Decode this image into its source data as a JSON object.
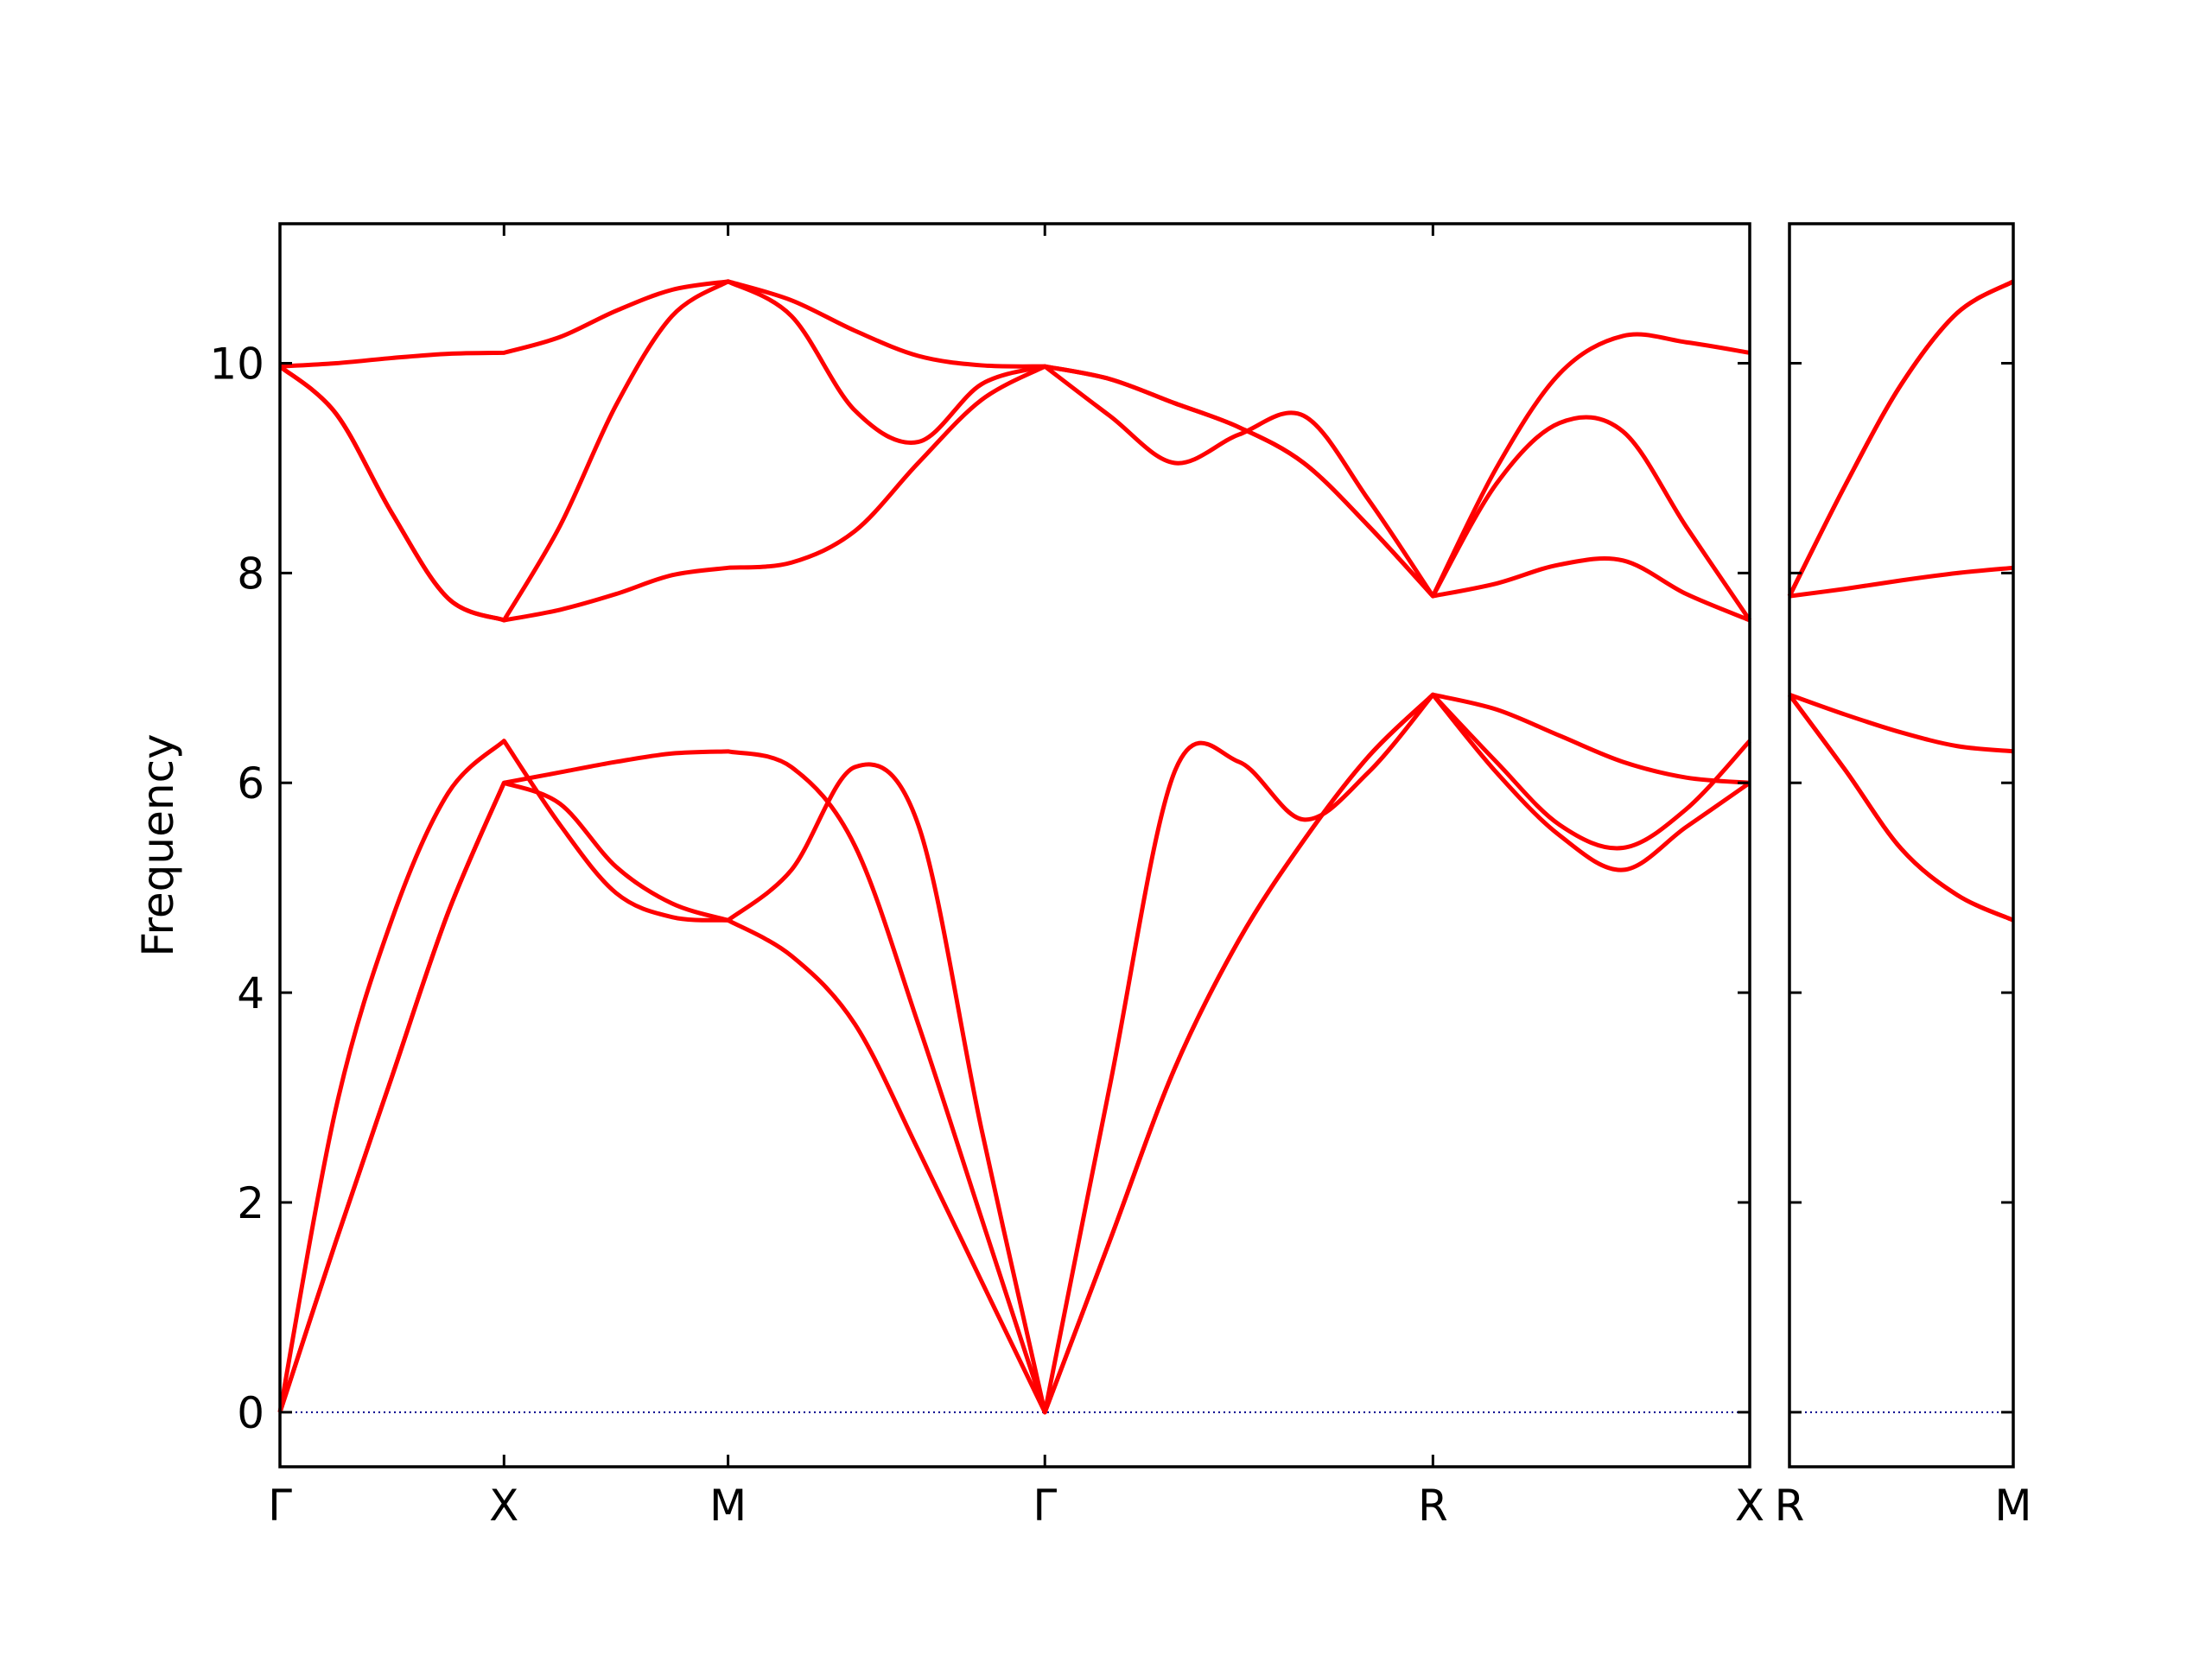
{
  "chart_data": [
    {
      "type": "line",
      "ylabel": "Frequency",
      "color": "#ff0000",
      "x": [
        0,
        0.25,
        0.5,
        0.75,
        1,
        1.25,
        1.5,
        1.75,
        2,
        2.283,
        2.566,
        2.849,
        3.131,
        3.414,
        3.703,
        3.992,
        4.28,
        4.569,
        4.858,
        5.146,
        5.429,
        5.711,
        5.994,
        6.277,
        6.56
      ],
      "series": [
        {
          "values": [
            0,
            1.63,
            3.2,
            4.76,
            6.0,
            5.8,
            5.2,
            4.85,
            4.69,
            4.35,
            3.7,
            2.5,
            1.25,
            0,
            1.63,
            3.27,
            4.5,
            5.45,
            6.25,
            6.84,
            6.7,
            6.45,
            6.2,
            6.05,
            6.0
          ]
        },
        {
          "values": [
            0,
            1.63,
            3.2,
            4.76,
            6.0,
            6.1,
            6.2,
            6.28,
            6.3,
            6.15,
            5.4,
            3.7,
            1.85,
            0,
            1.63,
            3.27,
            4.5,
            5.45,
            6.25,
            6.84,
            6.1,
            5.5,
            5.17,
            5.58,
            6.0
          ]
        },
        {
          "values": [
            0,
            2.9,
            4.7,
            5.9,
            6.4,
            5.6,
            4.95,
            4.72,
            4.69,
            5.17,
            6.15,
            5.6,
            2.7,
            0,
            3.1,
            6.1,
            6.2,
            5.65,
            6.1,
            6.84,
            6.2,
            5.6,
            5.38,
            5.75,
            6.4
          ]
        },
        {
          "values": [
            9.97,
            9.52,
            8.57,
            7.76,
            7.55,
            7.65,
            7.8,
            7.98,
            8.05,
            8.1,
            8.4,
            9.05,
            9.65,
            9.97,
            9.5,
            9.05,
            9.32,
            9.5,
            8.7,
            7.78,
            7.9,
            8.08,
            8.12,
            7.8,
            7.55
          ]
        },
        {
          "values": [
            9.97,
            9.52,
            8.57,
            7.76,
            7.55,
            8.45,
            9.6,
            10.45,
            10.78,
            10.45,
            9.55,
            9.25,
            9.8,
            9.97,
            9.85,
            9.62,
            9.39,
            9.05,
            8.45,
            7.78,
            8.85,
            9.43,
            9.35,
            8.44,
            7.55
          ]
        },
        {
          "values": [
            9.97,
            10.0,
            10.05,
            10.09,
            10.1,
            10.25,
            10.5,
            10.7,
            10.78,
            10.6,
            10.31,
            10.07,
            9.98,
            9.97,
            9.85,
            9.62,
            9.39,
            9.05,
            8.45,
            7.78,
            9.0,
            9.9,
            10.26,
            10.2,
            10.1
          ]
        }
      ],
      "xlim": [
        0,
        6.56
      ],
      "xticks": [
        {
          "value": 0,
          "label": "Γ"
        },
        {
          "value": 1,
          "label": "X"
        },
        {
          "value": 2,
          "label": "M"
        },
        {
          "value": 3.414,
          "label": "Γ"
        },
        {
          "value": 5.146,
          "label": "R"
        },
        {
          "value": 6.56,
          "label": "X"
        }
      ],
      "ylim": [
        -0.52,
        11.33
      ],
      "yticks": [
        0,
        2,
        4,
        6,
        8,
        10
      ],
      "ytick_labels": true,
      "reference_line": {
        "value": 0,
        "color": "#00008b",
        "style": "dotted"
      }
    },
    {
      "type": "line",
      "color": "#ff0000",
      "x": [
        0,
        0.25,
        0.5,
        0.75,
        1
      ],
      "series": [
        {
          "values": [
            6.84,
            6.12,
            5.37,
            4.93,
            4.69
          ]
        },
        {
          "values": [
            6.84,
            6.12,
            5.37,
            4.93,
            4.69
          ]
        },
        {
          "values": [
            6.84,
            6.65,
            6.48,
            6.35,
            6.3
          ]
        },
        {
          "values": [
            7.78,
            7.85,
            7.93,
            8.0,
            8.05
          ]
        },
        {
          "values": [
            7.78,
            8.84,
            9.8,
            10.48,
            10.78
          ]
        },
        {
          "values": [
            7.78,
            8.84,
            9.8,
            10.48,
            10.78
          ]
        }
      ],
      "xlim": [
        0,
        1
      ],
      "xticks": [
        {
          "value": 0,
          "label": "R"
        },
        {
          "value": 1,
          "label": "M"
        }
      ],
      "ylim": [
        -0.52,
        11.33
      ],
      "yticks": [
        0,
        2,
        4,
        6,
        8,
        10
      ],
      "ytick_labels": false,
      "reference_line": {
        "value": 0,
        "color": "#00008b",
        "style": "dotted"
      }
    }
  ]
}
